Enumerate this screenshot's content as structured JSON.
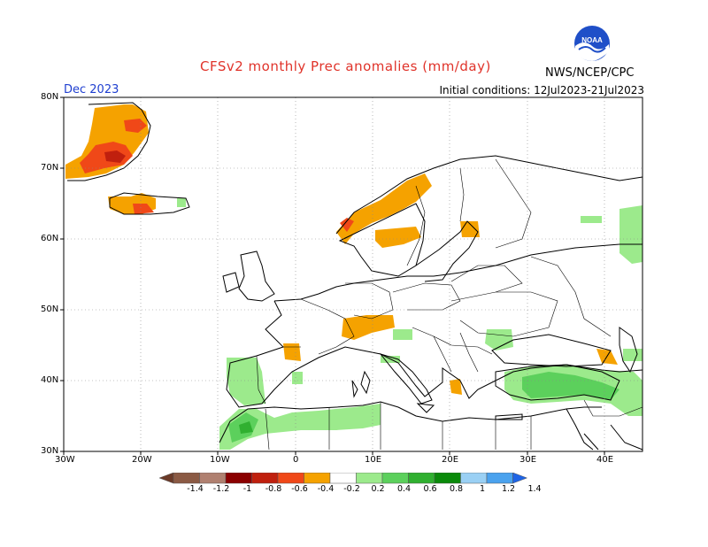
{
  "header": {
    "title": "CFSv2 monthly Prec anomalies (mm/day)",
    "month": "Dec 2023",
    "initial_conditions": "Initial conditions: 12Jul2023-21Jul2023",
    "agency": "NWS/NCEP/CPC",
    "logo_text": "NOAA"
  },
  "map": {
    "projection": "equirectangular",
    "lon_range": [
      -30,
      45
    ],
    "lat_range": [
      30,
      80
    ],
    "lat_ticks": [
      "80N",
      "70N",
      "60N",
      "50N",
      "40N",
      "30N"
    ],
    "lon_ticks": [
      "30W",
      "20W",
      "10W",
      "0",
      "10E",
      "20E",
      "30E",
      "40E"
    ],
    "grid": "dotted",
    "colors": {
      "land_outline": "#000000",
      "ocean": "#ffffff",
      "grid": "#888888"
    },
    "anomaly_patches": [
      {
        "region": "Greenland east coast",
        "sign": "dry"
      },
      {
        "region": "Iceland",
        "sign": "dry"
      },
      {
        "region": "Norway coast",
        "sign": "dry"
      },
      {
        "region": "Southern Finland",
        "sign": "dry"
      },
      {
        "region": "Alps",
        "sign": "dry"
      },
      {
        "region": "Pyrenees",
        "sign": "dry"
      },
      {
        "region": "Greece",
        "sign": "dry"
      },
      {
        "region": "Iberia west",
        "sign": "wet"
      },
      {
        "region": "Northwest Africa",
        "sign": "wet"
      },
      {
        "region": "Turkey and Levant",
        "sign": "wet"
      },
      {
        "region": "Western Russia",
        "sign": "wet"
      },
      {
        "region": "Balkans",
        "sign": "wet"
      }
    ]
  },
  "colorbar": {
    "labels": [
      "-1.4",
      "-1.2",
      "-1",
      "-0.8",
      "-0.6",
      "-0.4",
      "-0.2",
      "0.2",
      "0.4",
      "0.6",
      "0.8",
      "1",
      "1.2",
      "1.4"
    ],
    "colors": [
      "#6b3a28",
      "#8b5a44",
      "#b08070",
      "#8b0000",
      "#c0200e",
      "#f04818",
      "#f5a200",
      "#ffffff",
      "#9cea8c",
      "#5cd05c",
      "#30b030",
      "#0a8a0a",
      "#9ad0f4",
      "#4aa2ee",
      "#1e64e6"
    ]
  }
}
